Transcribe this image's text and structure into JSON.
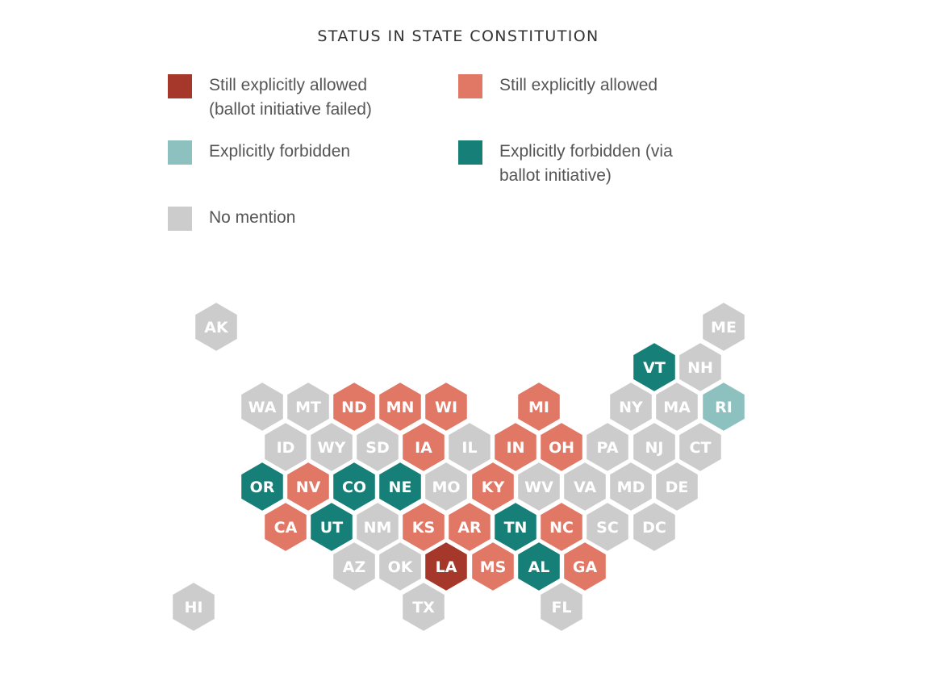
{
  "title": "STATUS IN STATE CONSTITUTION",
  "colors": {
    "dark_red": "#a5382a",
    "salmon": "#e17866",
    "light_teal": "#8dc1bf",
    "teal": "#167f78",
    "gray": "#cccccc",
    "label": "#ffffff"
  },
  "legend": [
    {
      "label": "Still explicitly allowed\n(ballot initiative failed)",
      "color": "#a5382a"
    },
    {
      "label": "Still explicitly allowed",
      "color": "#e17866"
    },
    {
      "label": "Explicitly forbidden",
      "color": "#8dc1bf"
    },
    {
      "label": "Explicitly forbidden (via\nballot initiative)",
      "color": "#167f78"
    },
    {
      "label": "No mention",
      "color": "#cccccc"
    }
  ],
  "states": [
    {
      "abbr": "AK",
      "status": "No mention"
    },
    {
      "abbr": "ME",
      "status": "No mention"
    },
    {
      "abbr": "VT",
      "status": "Explicitly forbidden (via ballot initiative)"
    },
    {
      "abbr": "NH",
      "status": "No mention"
    },
    {
      "abbr": "WA",
      "status": "No mention"
    },
    {
      "abbr": "MT",
      "status": "No mention"
    },
    {
      "abbr": "ND",
      "status": "Still explicitly allowed"
    },
    {
      "abbr": "MN",
      "status": "Still explicitly allowed"
    },
    {
      "abbr": "WI",
      "status": "Still explicitly allowed"
    },
    {
      "abbr": "MI",
      "status": "Still explicitly allowed"
    },
    {
      "abbr": "NY",
      "status": "No mention"
    },
    {
      "abbr": "MA",
      "status": "No mention"
    },
    {
      "abbr": "RI",
      "status": "Explicitly forbidden"
    },
    {
      "abbr": "ID",
      "status": "No mention"
    },
    {
      "abbr": "WY",
      "status": "No mention"
    },
    {
      "abbr": "SD",
      "status": "No mention"
    },
    {
      "abbr": "IA",
      "status": "Still explicitly allowed"
    },
    {
      "abbr": "IL",
      "status": "No mention"
    },
    {
      "abbr": "IN",
      "status": "Still explicitly allowed"
    },
    {
      "abbr": "OH",
      "status": "Still explicitly allowed"
    },
    {
      "abbr": "PA",
      "status": "No mention"
    },
    {
      "abbr": "NJ",
      "status": "No mention"
    },
    {
      "abbr": "CT",
      "status": "No mention"
    },
    {
      "abbr": "OR",
      "status": "Explicitly forbidden (via ballot initiative)"
    },
    {
      "abbr": "NV",
      "status": "Still explicitly allowed"
    },
    {
      "abbr": "CO",
      "status": "Explicitly forbidden (via ballot initiative)"
    },
    {
      "abbr": "NE",
      "status": "Explicitly forbidden (via ballot initiative)"
    },
    {
      "abbr": "MO",
      "status": "No mention"
    },
    {
      "abbr": "KY",
      "status": "Still explicitly allowed"
    },
    {
      "abbr": "WV",
      "status": "No mention"
    },
    {
      "abbr": "VA",
      "status": "No mention"
    },
    {
      "abbr": "MD",
      "status": "No mention"
    },
    {
      "abbr": "DE",
      "status": "No mention"
    },
    {
      "abbr": "CA",
      "status": "Still explicitly allowed"
    },
    {
      "abbr": "UT",
      "status": "Explicitly forbidden (via ballot initiative)"
    },
    {
      "abbr": "NM",
      "status": "No mention"
    },
    {
      "abbr": "KS",
      "status": "Still explicitly allowed"
    },
    {
      "abbr": "AR",
      "status": "Still explicitly allowed"
    },
    {
      "abbr": "TN",
      "status": "Explicitly forbidden (via ballot initiative)"
    },
    {
      "abbr": "NC",
      "status": "Still explicitly allowed"
    },
    {
      "abbr": "SC",
      "status": "No mention"
    },
    {
      "abbr": "DC",
      "status": "No mention"
    },
    {
      "abbr": "AZ",
      "status": "No mention"
    },
    {
      "abbr": "OK",
      "status": "No mention"
    },
    {
      "abbr": "LA",
      "status": "Still explicitly allowed (ballot initiative failed)"
    },
    {
      "abbr": "MS",
      "status": "Still explicitly allowed"
    },
    {
      "abbr": "AL",
      "status": "Explicitly forbidden (via ballot initiative)"
    },
    {
      "abbr": "GA",
      "status": "Still explicitly allowed"
    },
    {
      "abbr": "HI",
      "status": "No mention"
    },
    {
      "abbr": "TX",
      "status": "No mention"
    },
    {
      "abbr": "FL",
      "status": "No mention"
    }
  ]
}
